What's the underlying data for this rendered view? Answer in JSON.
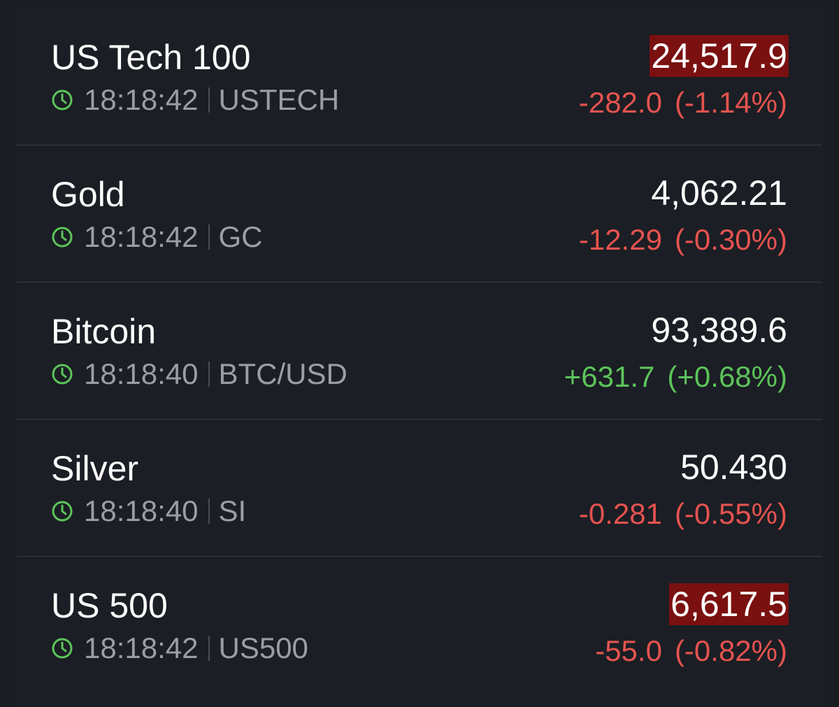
{
  "colors": {
    "background": "#1a1d22",
    "negative": "#e5534f",
    "positive": "#5cc45a",
    "flash_down": "#7a1010",
    "clock": "#5cc45a"
  },
  "watchlist": [
    {
      "name": "US Tech 100",
      "time": "18:18:42",
      "symbol": "USTECH",
      "price": "24,517.9",
      "change": "-282.0",
      "change_pct": "(-1.14%)",
      "direction": "down",
      "price_highlighted": true,
      "icon": "clock-icon"
    },
    {
      "name": "Gold",
      "time": "18:18:42",
      "symbol": "GC",
      "price": "4,062.21",
      "change": "-12.29",
      "change_pct": "(-0.30%)",
      "direction": "down",
      "price_highlighted": false,
      "icon": "clock-icon"
    },
    {
      "name": "Bitcoin",
      "time": "18:18:40",
      "symbol": "BTC/USD",
      "price": "93,389.6",
      "change": "+631.7",
      "change_pct": "(+0.68%)",
      "direction": "up",
      "price_highlighted": false,
      "icon": "clock-icon"
    },
    {
      "name": "Silver",
      "time": "18:18:40",
      "symbol": "SI",
      "price": "50.430",
      "change": "-0.281",
      "change_pct": "(-0.55%)",
      "direction": "down",
      "price_highlighted": false,
      "icon": "clock-icon"
    },
    {
      "name": "US 500",
      "time": "18:18:42",
      "symbol": "US500",
      "price": "6,617.5",
      "change": "-55.0",
      "change_pct": "(-0.82%)",
      "direction": "down",
      "price_highlighted": true,
      "icon": "clock-icon"
    }
  ]
}
